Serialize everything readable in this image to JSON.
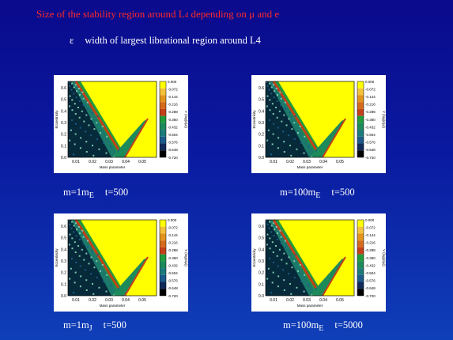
{
  "header": {
    "title_prefix": "Size of the stability region around L",
    "title_sub": "4",
    "title_mid": " depending on ",
    "title_mu": "μ",
    "title_suffix": " and e",
    "subtitle_symbol": "ε",
    "subtitle_text": "width of largest librational region around L4"
  },
  "plots": {
    "ylabel": "Eccentricity",
    "xlabel": "Mass parameter",
    "cbar_label": "Y (log(ε/μ))",
    "y_ticks": [
      "0.0",
      "0.1",
      "0.2",
      "0.3",
      "0.4",
      "0.5",
      "0.6"
    ],
    "x_ticks": [
      "0.01",
      "0.02",
      "0.03",
      "0.04",
      "0.05"
    ],
    "cbar_ticks": [
      "0.000",
      "-0.072",
      "-0.144",
      "-0.216",
      "-0.288",
      "-0.360",
      "-0.432",
      "-0.504",
      "-0.576",
      "-0.648",
      "-0.720"
    ],
    "cbar_colors": [
      "#ffff00",
      "#f4c23a",
      "#e3941e",
      "#d46a1d",
      "#c4401a",
      "#1f9a3d",
      "#1d8a5a",
      "#1c7a7a",
      "#1b5a8a",
      "#102a5a",
      "#000000"
    ]
  },
  "panels": [
    {
      "m_prefix": "m=1m",
      "m_sub": "E",
      "t": "t=500"
    },
    {
      "m_prefix": "m=100m",
      "m_sub": "E",
      "t": "t=500"
    },
    {
      "m_prefix": "m=1m",
      "m_sub": "J",
      "t": "t=500"
    },
    {
      "m_prefix": "m=100m",
      "m_sub": "E",
      "t": "t=5000"
    }
  ]
}
